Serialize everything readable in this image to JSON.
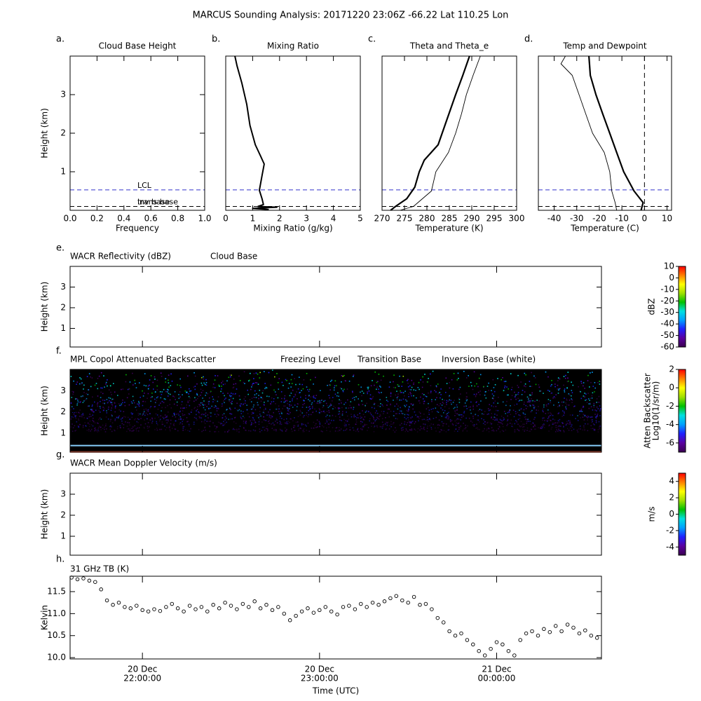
{
  "title": "MARCUS Sounding Analysis: 20171220 23:06Z   -66.22 Lat  110.25 Lon",
  "chart_data": [
    {
      "type": "line",
      "panel_label": "a.",
      "title": "Cloud Base Height",
      "xlabel": "Frequency",
      "ylabel": "Height (km)",
      "xlim": [
        0,
        1
      ],
      "xticks": [
        {
          "value": 0,
          "label": "0.0"
        },
        {
          "value": 0.2,
          "label": "0.2"
        },
        {
          "value": 0.4,
          "label": "0.4"
        },
        {
          "value": 0.6,
          "label": "0.6"
        },
        {
          "value": 0.8,
          "label": "0.8"
        },
        {
          "value": 1,
          "label": "1.0"
        }
      ],
      "ylim": [
        0,
        4
      ],
      "yticks": [
        1,
        2,
        3
      ],
      "hlines": [
        {
          "y": 0.53,
          "color": "#3333cc",
          "label": "LCL"
        },
        {
          "y": 0.1,
          "color": "#000000",
          "label": "inv base"
        },
        {
          "y": 0.1,
          "color": "#000000",
          "label": "trans base"
        }
      ]
    },
    {
      "type": "line",
      "panel_label": "b.",
      "title": "Mixing Ratio",
      "xlabel": "Mixing Ratio (g/kg)",
      "xlim": [
        0,
        5
      ],
      "xticks": [
        0,
        1,
        2,
        3,
        4,
        5
      ],
      "ylim": [
        0,
        4
      ],
      "hlines": [
        {
          "y": 0.53,
          "color": "#3333cc"
        },
        {
          "y": 0.1,
          "color": "#000000"
        }
      ],
      "series": [
        {
          "color": "#000000",
          "line_width": 2,
          "heights": [
            0.02,
            0.05,
            0.08,
            0.1,
            0.15,
            0.3,
            0.52,
            0.9,
            1.2,
            1.4,
            1.7,
            2.2,
            2.75,
            3.3,
            3.75,
            4.0
          ],
          "values": [
            1.6,
            1.0,
            1.9,
            1.2,
            1.4,
            1.35,
            1.25,
            1.35,
            1.43,
            1.3,
            1.1,
            0.9,
            0.78,
            0.6,
            0.42,
            0.34
          ]
        }
      ]
    },
    {
      "type": "line",
      "panel_label": "c.",
      "title": "Theta and Theta_e",
      "xlabel": "Temperature (K)",
      "xlim": [
        270,
        300
      ],
      "xticks": [
        270,
        275,
        280,
        285,
        290,
        295,
        300
      ],
      "ylim": [
        0,
        4
      ],
      "hlines": [
        {
          "y": 0.53,
          "color": "#3333cc"
        },
        {
          "y": 0.1,
          "color": "#000000"
        }
      ],
      "series": [
        {
          "color": "#000000",
          "line_width": 2.2,
          "heights": [
            0,
            0.1,
            0.3,
            0.6,
            1.0,
            1.3,
            1.7,
            2.2,
            3.0,
            3.5,
            4.0
          ],
          "values": [
            271.9,
            273,
            275.5,
            277.3,
            278.3,
            279.4,
            282.5,
            284,
            286.4,
            288,
            289.5
          ]
        },
        {
          "color": "#000000",
          "line_width": 0.9,
          "heights": [
            0,
            0.1,
            0.5,
            1.0,
            1.5,
            2.0,
            2.5,
            3.0,
            3.5,
            4.0
          ],
          "values": [
            274,
            277,
            281,
            282,
            284.8,
            286.4,
            287.7,
            288.8,
            290.3,
            291.9
          ]
        }
      ]
    },
    {
      "type": "line",
      "panel_label": "d.",
      "title": "Temp and Dewpoint",
      "xlabel": "Temperature (C)",
      "xlim": [
        -47,
        12
      ],
      "xticks": [
        -40,
        -30,
        -20,
        -10,
        0,
        10
      ],
      "ylim": [
        0,
        4
      ],
      "vlines": [
        0
      ],
      "hlines": [
        {
          "y": 0.53,
          "color": "#3333cc"
        },
        {
          "y": 0.1,
          "color": "#000000"
        }
      ],
      "series": [
        {
          "color": "#000000",
          "line_width": 2.2,
          "heights": [
            0,
            0.2,
            0.5,
            1.0,
            1.5,
            2.0,
            2.5,
            3.0,
            3.5,
            4.0
          ],
          "values": [
            -1.5,
            -0.6,
            -4.6,
            -9.2,
            -12.3,
            -15.4,
            -18.5,
            -21.5,
            -24,
            -24.6
          ]
        },
        {
          "color": "#000000",
          "line_width": 0.9,
          "heights": [
            0,
            0.2,
            0.5,
            1.0,
            1.5,
            2.0,
            2.5,
            3.0,
            3.5,
            3.8,
            4.0
          ],
          "values": [
            -12.3,
            -13,
            -14.5,
            -15.4,
            -17.8,
            -23,
            -26,
            -29,
            -32,
            -37,
            -35
          ]
        }
      ]
    },
    {
      "type": "heatmap",
      "panel_label": "e.",
      "title": "WACR Reflectivity (dBZ)",
      "ylabel": "Height (km)",
      "ylim": [
        0.1,
        4.0
      ],
      "yticks": [
        1,
        2,
        3
      ],
      "background": "#ffffff",
      "lines": [
        {
          "name": "Cloud Base",
          "color": "#000000"
        }
      ],
      "colorbar": {
        "label": [
          "dBZ"
        ],
        "lim": [
          -60,
          10
        ],
        "ticks": [
          10,
          0,
          -10,
          -20,
          -30,
          -40,
          -50,
          -60
        ],
        "colormap": [
          "#3a0050",
          "#5a00a0",
          "#2020ff",
          "#00a0ff",
          "#00e0e0",
          "#00c000",
          "#a0e000",
          "#ffff00",
          "#ff8000",
          "#ff0000"
        ]
      }
    },
    {
      "type": "heatmap",
      "panel_label": "f.",
      "title": "MPL Copol Attenuated Backscatter",
      "ylabel": "Height (km)",
      "ylim": [
        0.1,
        4.0
      ],
      "yticks": [
        1,
        2,
        3
      ],
      "background": "#000000",
      "lines": [
        {
          "name": "Freezing Level",
          "color": "#87cefa",
          "y": 0.41
        },
        {
          "name": "Transition Base",
          "color": "#f26b50",
          "y": 0.11
        },
        {
          "name": "Inversion Base (white)",
          "color": "#000000"
        }
      ],
      "colorbar": {
        "label": [
          "Atten Backscatter",
          "Log10(1/sr/m)"
        ],
        "lim": [
          -7,
          2
        ],
        "ticks": [
          2,
          0,
          -2,
          -4,
          -6
        ],
        "colormap": [
          "#3a0050",
          "#5a00a0",
          "#2020ff",
          "#00a0ff",
          "#00e0e0",
          "#00c000",
          "#a0e000",
          "#ffff00",
          "#ff8000",
          "#ff0000"
        ]
      }
    },
    {
      "type": "heatmap",
      "panel_label": "g.",
      "title": "WACR Mean Doppler Velocity (m/s)",
      "ylabel": "Height (km)",
      "ylim": [
        0.1,
        4.0
      ],
      "yticks": [
        1,
        2,
        3
      ],
      "background": "#ffffff",
      "colorbar": {
        "label": [
          "m/s"
        ],
        "lim": [
          -5,
          5
        ],
        "ticks": [
          4,
          2,
          0,
          -2,
          -4
        ],
        "colormap": [
          "#3a0050",
          "#5a00a0",
          "#2020ff",
          "#00a0ff",
          "#00e0e0",
          "#00c000",
          "#a0e000",
          "#ffff00",
          "#ff8000",
          "#ff0000"
        ]
      }
    },
    {
      "type": "scatter",
      "panel_label": "h.",
      "title": "31 GHz TB (K)",
      "ylabel": "Kelvin",
      "xlabel": "Time (UTC)",
      "xlim": [
        "2017-12-20T21:35:30",
        "2017-12-21T00:35:30"
      ],
      "xticks": [
        {
          "value": "2017-12-20T22:00:00",
          "label": [
            "20 Dec",
            "22:00:00"
          ]
        },
        {
          "value": "2017-12-20T23:00:00",
          "label": [
            "20 Dec",
            "23:00:00"
          ]
        },
        {
          "value": "2017-12-21T00:00:00",
          "label": [
            "21 Dec",
            "00:00:00"
          ]
        }
      ],
      "ylim": [
        9.97,
        11.85
      ],
      "yticks": [
        {
          "value": 10,
          "label": "10.0"
        },
        {
          "value": 10.5,
          "label": "10.5"
        },
        {
          "value": 11,
          "label": "11.0"
        },
        {
          "value": 11.5,
          "label": "11.5"
        }
      ],
      "x": [
        "2017-12-20T21:36",
        "2017-12-20T21:38",
        "2017-12-20T21:40",
        "2017-12-20T21:42",
        "2017-12-20T21:44",
        "2017-12-20T21:46",
        "2017-12-20T21:48",
        "2017-12-20T21:50",
        "2017-12-20T21:52",
        "2017-12-20T21:54",
        "2017-12-20T21:56",
        "2017-12-20T21:58",
        "2017-12-20T22:00",
        "2017-12-20T22:02",
        "2017-12-20T22:04",
        "2017-12-20T22:06",
        "2017-12-20T22:08",
        "2017-12-20T22:10",
        "2017-12-20T22:12",
        "2017-12-20T22:14",
        "2017-12-20T22:16",
        "2017-12-20T22:18",
        "2017-12-20T22:20",
        "2017-12-20T22:22",
        "2017-12-20T22:24",
        "2017-12-20T22:26",
        "2017-12-20T22:28",
        "2017-12-20T22:30",
        "2017-12-20T22:32",
        "2017-12-20T22:34",
        "2017-12-20T22:36",
        "2017-12-20T22:38",
        "2017-12-20T22:40",
        "2017-12-20T22:42",
        "2017-12-20T22:44",
        "2017-12-20T22:46",
        "2017-12-20T22:48",
        "2017-12-20T22:50",
        "2017-12-20T22:52",
        "2017-12-20T22:54",
        "2017-12-20T22:56",
        "2017-12-20T22:58",
        "2017-12-20T23:00",
        "2017-12-20T23:02",
        "2017-12-20T23:04",
        "2017-12-20T23:06",
        "2017-12-20T23:08",
        "2017-12-20T23:10",
        "2017-12-20T23:12",
        "2017-12-20T23:14",
        "2017-12-20T23:16",
        "2017-12-20T23:18",
        "2017-12-20T23:20",
        "2017-12-20T23:22",
        "2017-12-20T23:24",
        "2017-12-20T23:26",
        "2017-12-20T23:28",
        "2017-12-20T23:30",
        "2017-12-20T23:32",
        "2017-12-20T23:34",
        "2017-12-20T23:36",
        "2017-12-20T23:38",
        "2017-12-20T23:40",
        "2017-12-20T23:42",
        "2017-12-20T23:44",
        "2017-12-20T23:46",
        "2017-12-20T23:48",
        "2017-12-20T23:50",
        "2017-12-20T23:52",
        "2017-12-20T23:54",
        "2017-12-20T23:56",
        "2017-12-20T23:58",
        "2017-12-21T00:00",
        "2017-12-21T00:02",
        "2017-12-21T00:04",
        "2017-12-21T00:06",
        "2017-12-21T00:08",
        "2017-12-21T00:10",
        "2017-12-21T00:12",
        "2017-12-21T00:14",
        "2017-12-21T00:16",
        "2017-12-21T00:18",
        "2017-12-21T00:20",
        "2017-12-21T00:22",
        "2017-12-21T00:24",
        "2017-12-21T00:26",
        "2017-12-21T00:28",
        "2017-12-21T00:30",
        "2017-12-21T00:32",
        "2017-12-21T00:34"
      ],
      "values": [
        11.82,
        11.78,
        11.8,
        11.75,
        11.72,
        11.55,
        11.3,
        11.2,
        11.25,
        11.15,
        11.12,
        11.18,
        11.08,
        11.05,
        11.1,
        11.06,
        11.15,
        11.22,
        11.12,
        11.05,
        11.18,
        11.1,
        11.15,
        11.05,
        11.2,
        11.12,
        11.25,
        11.18,
        11.1,
        11.22,
        11.15,
        11.28,
        11.12,
        11.2,
        11.08,
        11.15,
        11.0,
        10.85,
        10.95,
        11.05,
        11.12,
        11.02,
        11.08,
        11.15,
        11.05,
        10.98,
        11.15,
        11.18,
        11.1,
        11.22,
        11.15,
        11.25,
        11.2,
        11.28,
        11.35,
        11.4,
        11.3,
        11.25,
        11.38,
        11.2,
        11.22,
        11.1,
        10.9,
        10.8,
        10.6,
        10.5,
        10.55,
        10.4,
        10.3,
        10.15,
        10.05,
        10.2,
        10.35,
        10.3,
        10.15,
        10.05,
        10.4,
        10.55,
        10.6,
        10.5,
        10.65,
        10.58,
        10.72,
        10.6,
        10.75,
        10.68,
        10.55,
        10.62,
        10.5,
        10.45
      ]
    }
  ]
}
